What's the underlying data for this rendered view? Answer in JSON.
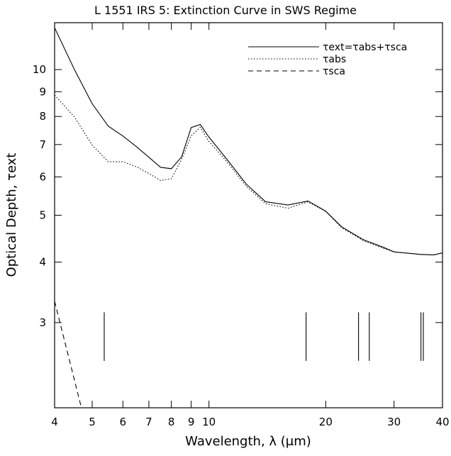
{
  "chart_data": {
    "type": "line",
    "title": "L 1551 IRS 5: Extinction Curve in SWS Regime",
    "xlabel": "Wavelength, λ (μm)",
    "ylabel": "Optical Depth, τext",
    "xscale": "log",
    "yscale": "log",
    "xlim": [
      4,
      40
    ],
    "ylim": [
      2,
      12.5
    ],
    "xticks": [
      4,
      5,
      6,
      7,
      8,
      9,
      10,
      20,
      30,
      40
    ],
    "yticks": [
      3,
      4,
      5,
      6,
      7,
      8,
      9,
      10
    ],
    "legend": "upper right",
    "x": [
      4,
      4.5,
      5,
      5.5,
      6,
      6.5,
      7,
      7.5,
      8,
      8.5,
      9,
      9.5,
      10,
      11,
      12.5,
      14,
      16,
      18,
      20,
      22,
      25,
      28,
      30,
      35,
      38,
      40
    ],
    "series": [
      {
        "name": "τext=τabs+τsca",
        "color": "#000000",
        "dash": "solid",
        "values": [
          12.2,
          10,
          8.5,
          7.64,
          7.29,
          6.93,
          6.59,
          6.28,
          6.24,
          6.6,
          7.59,
          7.7,
          7.25,
          6.6,
          5.79,
          5.33,
          5.25,
          5.35,
          5.1,
          4.73,
          4.45,
          4.3,
          4.2,
          4.15,
          4.14,
          4.18
        ]
      },
      {
        "name": "τabs",
        "color": "#000000",
        "dash": "dotted",
        "values": [
          8.86,
          7.98,
          6.98,
          6.45,
          6.45,
          6.3,
          6.1,
          5.9,
          5.95,
          6.52,
          7.3,
          7.6,
          7.1,
          6.52,
          5.73,
          5.28,
          5.17,
          5.33,
          5.09,
          4.71,
          4.43,
          4.28,
          4.2,
          4.15,
          4.14,
          4.18
        ]
      },
      {
        "name": "τsca",
        "color": "#000000",
        "dash": "dashed",
        "x": [
          4,
          4.69
        ],
        "values": [
          3.32,
          2.0
        ]
      }
    ],
    "feature_lines": {
      "x": [
        5.37,
        17.8,
        24.3,
        25.9,
        35.2,
        35.7
      ],
      "y_range": [
        2.5,
        3.15
      ]
    }
  }
}
